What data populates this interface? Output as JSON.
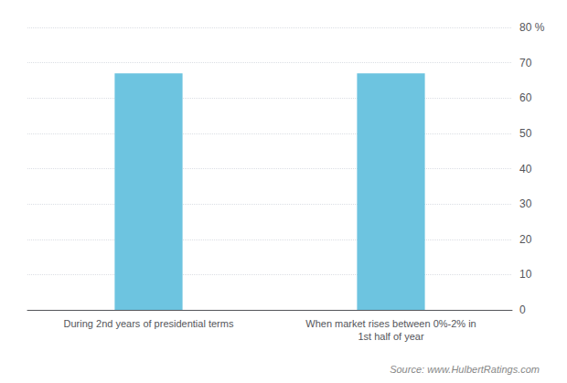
{
  "chart_data": {
    "type": "bar",
    "categories": [
      "During 2nd years of presidential terms",
      "When market rises between 0%-2% in\n1st half of year"
    ],
    "values": [
      67,
      67
    ],
    "color": "#6DC4E0",
    "ylim": [
      0,
      80
    ],
    "yticks": [
      0,
      10,
      20,
      30,
      40,
      50,
      60,
      70,
      {
        "value": 80,
        "label": "80 %"
      }
    ],
    "grid": true,
    "annotations": [
      "Source: www.HulbertRatings.com"
    ]
  }
}
